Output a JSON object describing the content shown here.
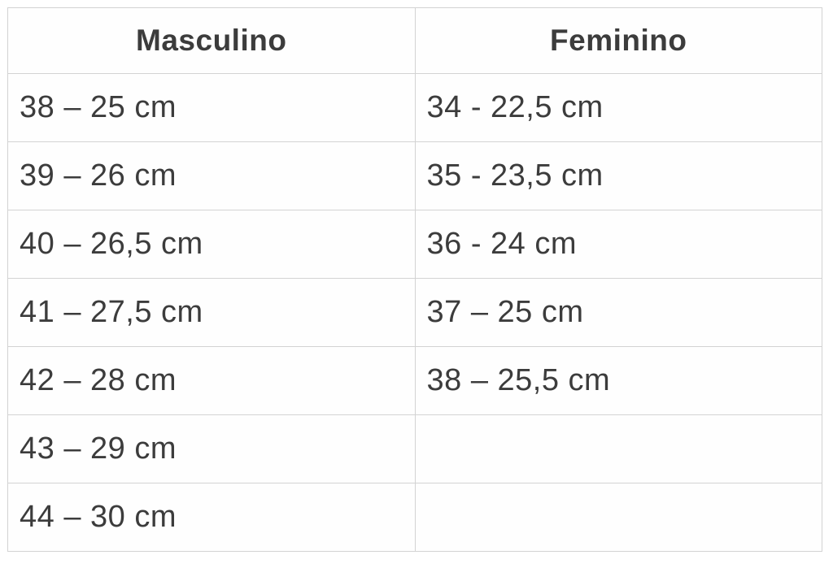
{
  "chart_data": {
    "type": "table",
    "title": "",
    "columns": [
      "Masculino",
      "Feminino"
    ],
    "rows": [
      [
        "38 – 25 cm",
        "34 - 22,5 cm"
      ],
      [
        "39 – 26 cm",
        "35 - 23,5 cm"
      ],
      [
        "40 – 26,5 cm",
        "36 - 24 cm"
      ],
      [
        "41 – 27,5 cm",
        "37 – 25 cm"
      ],
      [
        "42 – 28 cm",
        "38 – 25,5 cm"
      ],
      [
        "43 – 29 cm",
        ""
      ],
      [
        "44 – 30 cm",
        ""
      ]
    ],
    "layout_hints": {
      "header_bold": true,
      "header_align": "center",
      "cell_align": "left",
      "grid": "on"
    }
  },
  "colors": {
    "border": "#d3d3d3",
    "text": "#3c3c3c",
    "background": "#ffffff"
  }
}
